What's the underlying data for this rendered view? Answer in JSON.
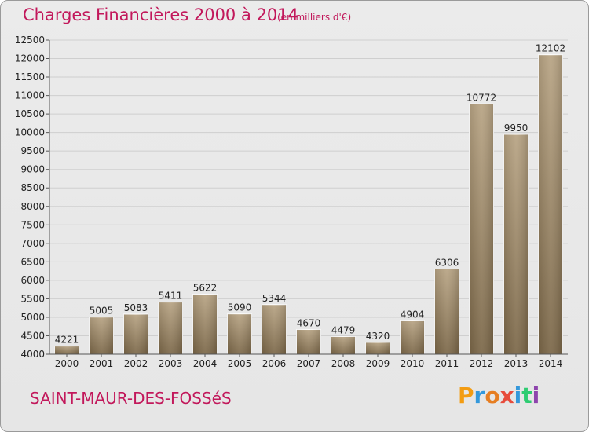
{
  "header": {
    "title": "Charges Financières 2000 à 2014",
    "subtitle": "(en milliers d'€)"
  },
  "footer": {
    "commune": "SAINT-MAUR-DES-FOSSéS",
    "logo_letters": [
      "P",
      "r",
      "o",
      "x",
      "i",
      "t",
      "i"
    ],
    "logo_colors": [
      "#f39c12",
      "#3498db",
      "#e67e22",
      "#e74c3c",
      "#3498db",
      "#2ecc71",
      "#8e44ad"
    ]
  },
  "chart_data": {
    "type": "bar",
    "title": "Charges Financières 2000 à 2014",
    "subtitle": "(en milliers d'€)",
    "categories": [
      "2000",
      "2001",
      "2002",
      "2003",
      "2004",
      "2005",
      "2006",
      "2007",
      "2008",
      "2009",
      "2010",
      "2011",
      "2012",
      "2013",
      "2014"
    ],
    "values": [
      4221,
      5005,
      5083,
      5411,
      5622,
      5090,
      5344,
      4670,
      4479,
      4320,
      4904,
      6306,
      10772,
      9950,
      12102
    ],
    "ylim": [
      4000,
      12500
    ],
    "yticks": [
      4000,
      4500,
      5000,
      5500,
      6000,
      6500,
      7000,
      7500,
      8000,
      8500,
      9000,
      9500,
      10000,
      10500,
      11000,
      11500,
      12000,
      12500
    ],
    "grid": true,
    "bar_color_top": "#b7a383",
    "bar_color_bottom": "#7a6647",
    "grid_color": "#cfcfcf"
  }
}
